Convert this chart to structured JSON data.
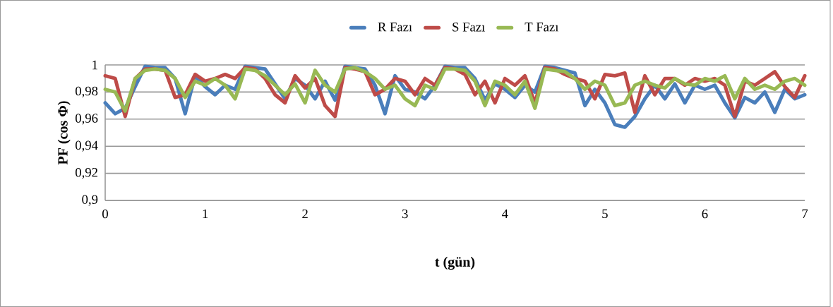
{
  "chart_data": {
    "type": "line",
    "xlabel": "t (gün)",
    "ylabel": "PF (cos Φ)",
    "x": [
      0,
      0.1,
      0.2,
      0.3,
      0.4,
      0.5,
      0.6,
      0.7,
      0.8,
      0.9,
      1,
      1.1,
      1.2,
      1.3,
      1.4,
      1.5,
      1.6,
      1.7,
      1.8,
      1.9,
      2,
      2.1,
      2.2,
      2.3,
      2.4,
      2.5,
      2.6,
      2.7,
      2.8,
      2.9,
      3,
      3.1,
      3.2,
      3.3,
      3.4,
      3.5,
      3.6,
      3.7,
      3.8,
      3.9,
      4,
      4.1,
      4.2,
      4.3,
      4.4,
      4.5,
      4.6,
      4.7,
      4.8,
      4.9,
      5,
      5.1,
      5.2,
      5.3,
      5.4,
      5.5,
      5.6,
      5.7,
      5.8,
      5.9,
      6,
      6.1,
      6.2,
      6.3,
      6.4,
      6.5,
      6.6,
      6.7,
      6.8,
      6.9,
      7
    ],
    "series": [
      {
        "name": "R Fazı",
        "color": "#4a7ebb",
        "values": [
          0.972,
          0.964,
          0.968,
          0.984,
          0.999,
          0.998,
          0.998,
          0.99,
          0.964,
          0.992,
          0.984,
          0.978,
          0.985,
          0.982,
          0.999,
          0.998,
          0.997,
          0.986,
          0.975,
          0.99,
          0.985,
          0.975,
          0.988,
          0.974,
          0.999,
          0.998,
          0.997,
          0.985,
          0.964,
          0.992,
          0.982,
          0.98,
          0.975,
          0.985,
          0.999,
          0.998,
          0.998,
          0.99,
          0.974,
          0.986,
          0.982,
          0.976,
          0.985,
          0.98,
          0.999,
          0.998,
          0.996,
          0.994,
          0.97,
          0.982,
          0.972,
          0.956,
          0.954,
          0.962,
          0.975,
          0.985,
          0.975,
          0.986,
          0.972,
          0.985,
          0.982,
          0.985,
          0.972,
          0.961,
          0.976,
          0.972,
          0.98,
          0.965,
          0.982,
          0.975,
          0.978
        ]
      },
      {
        "name": "S Fazı",
        "color": "#be4b48",
        "values": [
          0.992,
          0.99,
          0.962,
          0.99,
          0.997,
          0.997,
          0.996,
          0.976,
          0.978,
          0.993,
          0.988,
          0.99,
          0.993,
          0.99,
          0.998,
          0.997,
          0.99,
          0.978,
          0.972,
          0.992,
          0.983,
          0.99,
          0.97,
          0.962,
          0.998,
          0.997,
          0.995,
          0.978,
          0.982,
          0.99,
          0.988,
          0.978,
          0.99,
          0.985,
          0.998,
          0.997,
          0.993,
          0.978,
          0.988,
          0.972,
          0.99,
          0.985,
          0.992,
          0.972,
          0.998,
          0.997,
          0.993,
          0.99,
          0.988,
          0.975,
          0.993,
          0.992,
          0.994,
          0.965,
          0.992,
          0.978,
          0.99,
          0.99,
          0.985,
          0.99,
          0.988,
          0.99,
          0.985,
          0.962,
          0.988,
          0.985,
          0.99,
          0.995,
          0.984,
          0.976,
          0.992
        ]
      },
      {
        "name": "T Fazı",
        "color": "#98b954",
        "values": [
          0.982,
          0.98,
          0.966,
          0.99,
          0.996,
          0.997,
          0.996,
          0.99,
          0.976,
          0.988,
          0.985,
          0.99,
          0.985,
          0.975,
          0.997,
          0.996,
          0.992,
          0.985,
          0.978,
          0.986,
          0.972,
          0.996,
          0.985,
          0.98,
          0.997,
          0.998,
          0.995,
          0.99,
          0.982,
          0.985,
          0.975,
          0.97,
          0.985,
          0.982,
          0.997,
          0.997,
          0.996,
          0.988,
          0.97,
          0.988,
          0.985,
          0.978,
          0.988,
          0.968,
          0.997,
          0.996,
          0.995,
          0.99,
          0.982,
          0.988,
          0.985,
          0.97,
          0.972,
          0.985,
          0.988,
          0.985,
          0.983,
          0.99,
          0.986,
          0.985,
          0.99,
          0.988,
          0.992,
          0.975,
          0.99,
          0.982,
          0.985,
          0.982,
          0.988,
          0.99,
          0.985
        ]
      }
    ],
    "xlim": [
      0,
      7
    ],
    "xticks": [
      0,
      1,
      2,
      3,
      4,
      5,
      6,
      7
    ],
    "ylim": [
      0.9,
      1
    ],
    "yticks": [
      {
        "value": 0.9,
        "label": "0,9"
      },
      {
        "value": 0.92,
        "label": "0,92"
      },
      {
        "value": 0.94,
        "label": "0,94"
      },
      {
        "value": 0.96,
        "label": "0,96"
      },
      {
        "value": 0.98,
        "label": "0,98"
      },
      1
    ],
    "grid": "y",
    "legend": "top",
    "marker": "none",
    "line_style": "solid"
  }
}
